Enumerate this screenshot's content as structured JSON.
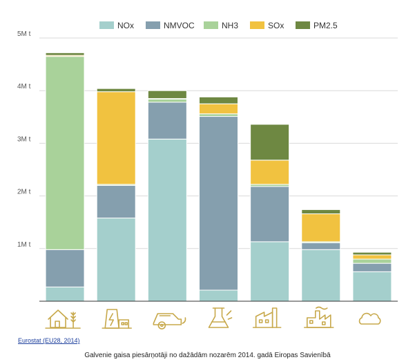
{
  "chart_data": {
    "type": "bar",
    "stacked": true,
    "categories": [
      "agriculture",
      "energy",
      "transport",
      "solvents",
      "industry",
      "commerce",
      "waste"
    ],
    "series": [
      {
        "name": "NOx",
        "color": "#a4cfcc",
        "values": [
          0.27,
          1.58,
          3.08,
          0.21,
          1.13,
          0.98,
          0.56
        ]
      },
      {
        "name": "NMVOC",
        "color": "#859fae",
        "values": [
          0.71,
          0.62,
          0.7,
          3.3,
          1.05,
          0.13,
          0.16
        ]
      },
      {
        "name": "NH3",
        "color": "#a9d29a",
        "values": [
          3.67,
          0.02,
          0.06,
          0.05,
          0.04,
          0.02,
          0.08
        ]
      },
      {
        "name": "SOx",
        "color": "#f1c240",
        "values": [
          0.02,
          1.76,
          0.01,
          0.19,
          0.46,
          0.53,
          0.08
        ]
      },
      {
        "name": "PM2.5",
        "color": "#6e8842",
        "values": [
          0.05,
          0.06,
          0.15,
          0.13,
          0.68,
          0.08,
          0.05
        ]
      }
    ],
    "yticks": [
      {
        "value": 1,
        "label": "1M t"
      },
      {
        "value": 2,
        "label": "2M t"
      },
      {
        "value": 3,
        "label": "3M t"
      },
      {
        "value": 4,
        "label": "4M t"
      },
      {
        "value": 5,
        "label": "5M t"
      }
    ],
    "ylim": [
      0,
      5
    ],
    "grid": true,
    "legend_position": "top-center",
    "category_icons": [
      "farm-house-wheat-icon",
      "power-plant-icon",
      "car-icon",
      "chemistry-flask-icon",
      "factory-icon",
      "factory-chimney-icon",
      "cloud-icon"
    ],
    "icon_color": "#c7a84a"
  },
  "source_link": "Eurostat (EU28, 2014)",
  "caption": "Galvenie gaisa piesārņotāji no dažādām nozarēm 2014. gadā Eiropas Savienībā"
}
